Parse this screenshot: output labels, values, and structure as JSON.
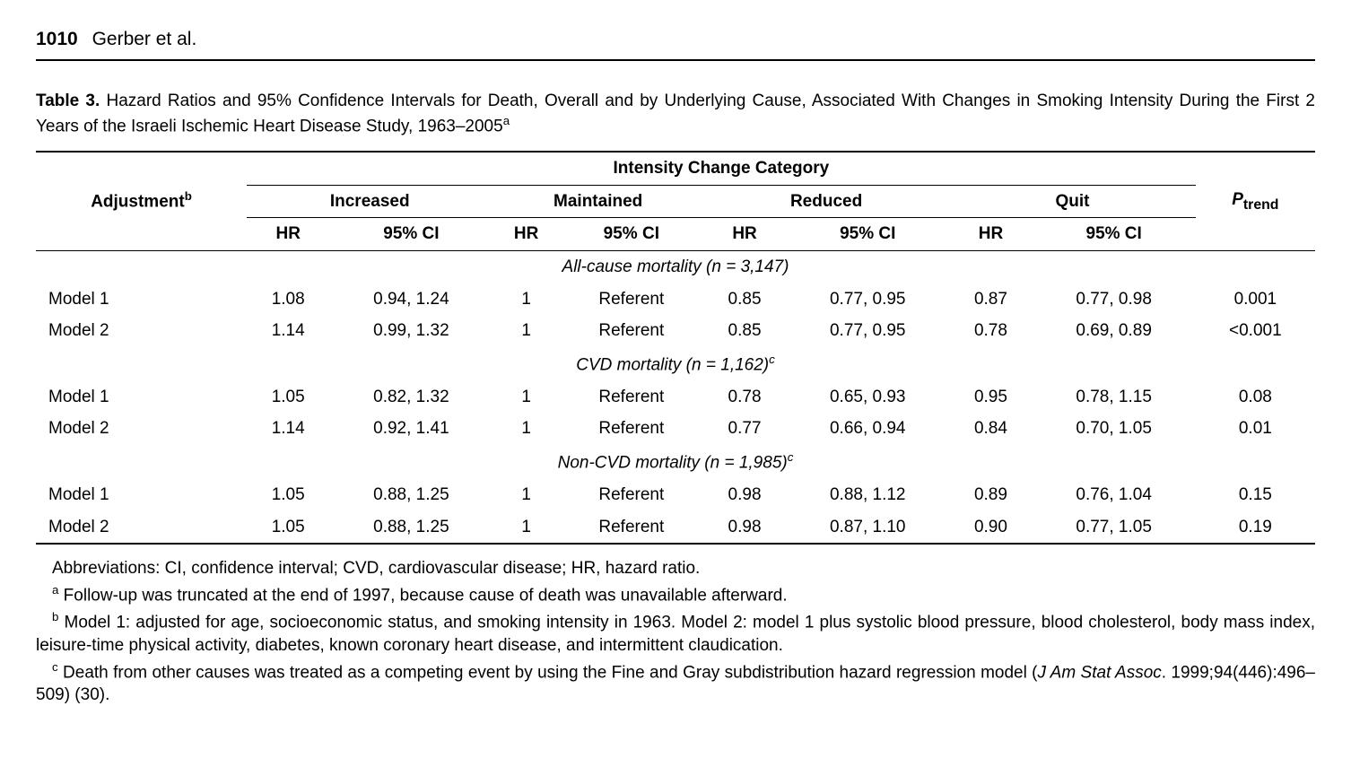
{
  "header": {
    "page_number": "1010",
    "authors": "Gerber et al."
  },
  "caption": {
    "label": "Table 3.",
    "text": "Hazard Ratios and 95% Confidence Intervals for Death, Overall and by Underlying Cause, Associated With Changes in Smoking Intensity During the First 2 Years of the Israeli Ischemic Heart Disease Study, 1963–2005",
    "sup": "a"
  },
  "table": {
    "top_header": "Intensity Change Category",
    "row_header": "Adjustment",
    "row_header_sup": "b",
    "groups": [
      "Increased",
      "Maintained",
      "Reduced",
      "Quit"
    ],
    "ptrend_label": "P",
    "ptrend_sub": "trend",
    "subcols": {
      "hr": "HR",
      "ci": "95% CI"
    },
    "sections": [
      {
        "title_pre": "All-cause mortality (",
        "title_n": "n",
        "title_post": " = 3,147)",
        "title_sup": "",
        "rows": [
          {
            "label": "Model 1",
            "inc_hr": "1.08",
            "inc_ci": "0.94, 1.24",
            "main_hr": "1",
            "main_ci": "Referent",
            "red_hr": "0.85",
            "red_ci": "0.77, 0.95",
            "quit_hr": "0.87",
            "quit_ci": "0.77, 0.98",
            "ptrend": "0.001"
          },
          {
            "label": "Model 2",
            "inc_hr": "1.14",
            "inc_ci": "0.99, 1.32",
            "main_hr": "1",
            "main_ci": "Referent",
            "red_hr": "0.85",
            "red_ci": "0.77, 0.95",
            "quit_hr": "0.78",
            "quit_ci": "0.69, 0.89",
            "ptrend": "<0.001"
          }
        ]
      },
      {
        "title_pre": "CVD mortality (",
        "title_n": "n",
        "title_post": " = 1,162)",
        "title_sup": "c",
        "rows": [
          {
            "label": "Model 1",
            "inc_hr": "1.05",
            "inc_ci": "0.82, 1.32",
            "main_hr": "1",
            "main_ci": "Referent",
            "red_hr": "0.78",
            "red_ci": "0.65, 0.93",
            "quit_hr": "0.95",
            "quit_ci": "0.78, 1.15",
            "ptrend": "0.08"
          },
          {
            "label": "Model 2",
            "inc_hr": "1.14",
            "inc_ci": "0.92, 1.41",
            "main_hr": "1",
            "main_ci": "Referent",
            "red_hr": "0.77",
            "red_ci": "0.66, 0.94",
            "quit_hr": "0.84",
            "quit_ci": "0.70, 1.05",
            "ptrend": "0.01"
          }
        ]
      },
      {
        "title_pre": "Non-CVD mortality (",
        "title_n": "n",
        "title_post": " = 1,985)",
        "title_sup": "c",
        "rows": [
          {
            "label": "Model 1",
            "inc_hr": "1.05",
            "inc_ci": "0.88, 1.25",
            "main_hr": "1",
            "main_ci": "Referent",
            "red_hr": "0.98",
            "red_ci": "0.88, 1.12",
            "quit_hr": "0.89",
            "quit_ci": "0.76, 1.04",
            "ptrend": "0.15"
          },
          {
            "label": "Model 2",
            "inc_hr": "1.05",
            "inc_ci": "0.88, 1.25",
            "main_hr": "1",
            "main_ci": "Referent",
            "red_hr": "0.98",
            "red_ci": "0.87, 1.10",
            "quit_hr": "0.90",
            "quit_ci": "0.77, 1.05",
            "ptrend": "0.19"
          }
        ]
      }
    ]
  },
  "footnotes": {
    "abbrev": "Abbreviations: CI, confidence interval; CVD, cardiovascular disease; HR, hazard ratio.",
    "a_sup": "a",
    "a": " Follow-up was truncated at the end of 1997, because cause of death was unavailable afterward.",
    "b_sup": "b",
    "b": " Model 1: adjusted for age, socioeconomic status, and smoking intensity in 1963. Model 2: model 1 plus systolic blood pressure, blood cholesterol, body mass index, leisure-time physical activity, diabetes, known coronary heart disease, and intermittent claudication.",
    "c_sup": "c",
    "c_pre": " Death from other causes was treated as a competing event by using the Fine and Gray subdistribution hazard regression model (",
    "c_ital": "J Am Stat Assoc",
    "c_post": ". 1999;94(446):496–509) (30)."
  }
}
